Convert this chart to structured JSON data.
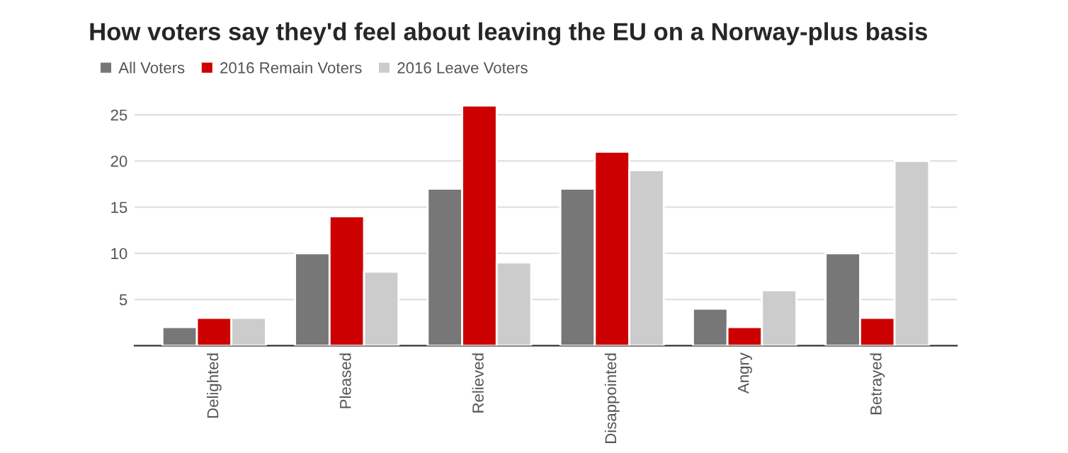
{
  "chart_data": {
    "type": "bar",
    "title": "How voters say they'd feel about leaving the EU on a Norway-plus basis",
    "categories": [
      "Delighted",
      "Pleased",
      "Relieved",
      "Disappointed",
      "Angry",
      "Betrayed"
    ],
    "series": [
      {
        "name": "All Voters",
        "color": "#777777",
        "values": [
          2,
          10,
          17,
          17,
          4,
          10
        ]
      },
      {
        "name": "2016 Remain Voters",
        "color": "#cc0000",
        "values": [
          3,
          14,
          26,
          21,
          2,
          3
        ]
      },
      {
        "name": "2016 Leave Voters",
        "color": "#cccccc",
        "values": [
          3,
          8,
          9,
          19,
          6,
          20
        ]
      }
    ],
    "ylim": [
      0,
      26
    ],
    "yticks": [
      5,
      10,
      15,
      20,
      25
    ],
    "grid": "y",
    "legend": "top left"
  }
}
